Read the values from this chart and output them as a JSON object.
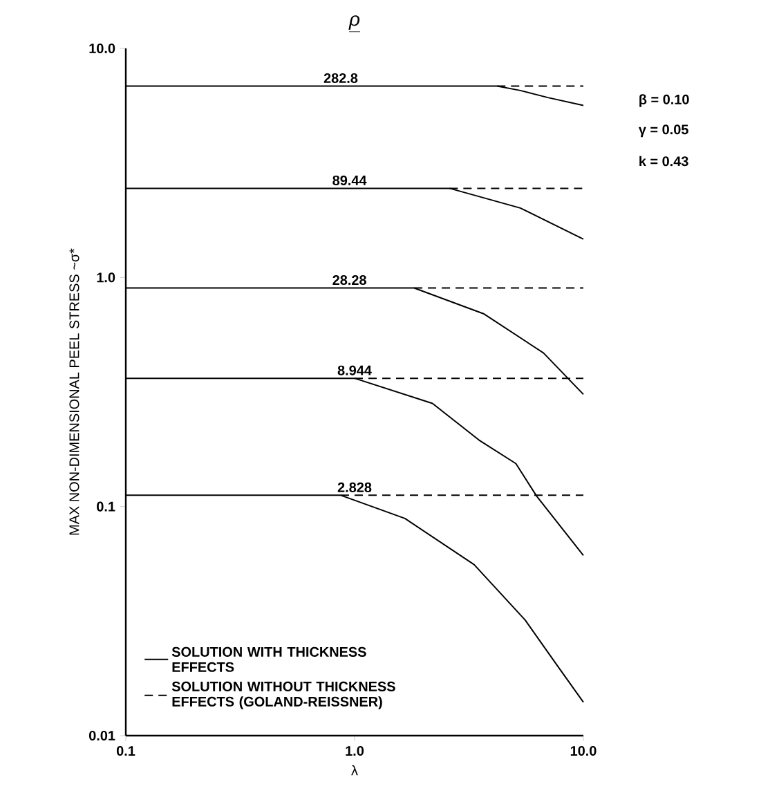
{
  "chart_data": {
    "type": "line",
    "title": "ρ",
    "xlabel": "λ",
    "ylabel": "MAX NON-DIMENSIONAL PEEL STRESS ~σ*",
    "log": "xy",
    "xlim": [
      0.1,
      10
    ],
    "ylim": [
      0.01,
      10
    ],
    "xticks": [
      0.1,
      {
        "value": 1,
        "label": "1.0"
      },
      {
        "value": 10,
        "label": "10.0"
      }
    ],
    "yticks": [
      0.01,
      0.1,
      {
        "value": 1,
        "label": "1.0"
      },
      {
        "value": 10,
        "label": "10.0"
      }
    ],
    "grid": false,
    "legend": "bottom left",
    "marker": "none",
    "series": [
      {
        "name": "SOLUTION WITH THICKNESS EFFECTS",
        "color": "#000000",
        "line_style": "solid",
        "x": [
          0.1,
          4.2,
          5.3,
          7.0,
          10
        ],
        "values": [
          6.85,
          6.85,
          6.55,
          6.1,
          5.64
        ]
      },
      {
        "color": "#000000",
        "line_style": "solid",
        "x": [
          0.1,
          2.6,
          5.3,
          10
        ],
        "values": [
          2.45,
          2.45,
          2.01,
          1.47
        ]
      },
      {
        "color": "#000000",
        "line_style": "solid",
        "x": [
          0.1,
          1.82,
          3.66,
          6.7,
          10
        ],
        "values": [
          0.9,
          0.9,
          0.695,
          0.468,
          0.309
        ]
      },
      {
        "color": "#000000",
        "line_style": "solid",
        "x": [
          0.1,
          1.0,
          2.19,
          3.5,
          5.07,
          6.25,
          10
        ],
        "values": [
          0.363,
          0.363,
          0.282,
          0.195,
          0.154,
          0.111,
          0.0612
        ]
      },
      {
        "color": "#000000",
        "line_style": "solid",
        "x": [
          0.1,
          0.87,
          1.66,
          3.33,
          5.56,
          7.7,
          10
        ],
        "values": [
          0.112,
          0.112,
          0.0887,
          0.0558,
          0.032,
          0.0202,
          0.014
        ]
      },
      {
        "name": "SOLUTION WITHOUT THICKNESS EFFECTS (GOLAND-REISSNER)",
        "color": "#000000",
        "line_style": "dashed",
        "x": [
          4.2,
          10
        ],
        "values": [
          6.85,
          6.85
        ]
      },
      {
        "color": "#000000",
        "line_style": "dashed",
        "x": [
          2.6,
          10
        ],
        "values": [
          2.45,
          2.45
        ]
      },
      {
        "color": "#000000",
        "line_style": "dashed",
        "x": [
          1.82,
          10
        ],
        "values": [
          0.9,
          0.9
        ]
      },
      {
        "color": "#000000",
        "line_style": "dashed",
        "x": [
          1.0,
          10
        ],
        "values": [
          0.363,
          0.363
        ]
      },
      {
        "color": "#000000",
        "line_style": "dashed",
        "x": [
          0.87,
          10
        ],
        "values": [
          0.112,
          0.112
        ]
      }
    ],
    "annotations": [
      {
        "text": "282.8",
        "x": 0.87,
        "y": 6.85
      },
      {
        "text": "89.44",
        "x": 0.95,
        "y": 2.45
      },
      {
        "text": "28.28",
        "x": 0.95,
        "y": 0.9
      },
      {
        "text": "8.944",
        "x": 1.0,
        "y": 0.363
      },
      {
        "text": "2.828",
        "x": 1.0,
        "y": 0.112
      },
      "β  =  0.10",
      "γ  =  0.05",
      "k  =  0.43"
    ]
  }
}
